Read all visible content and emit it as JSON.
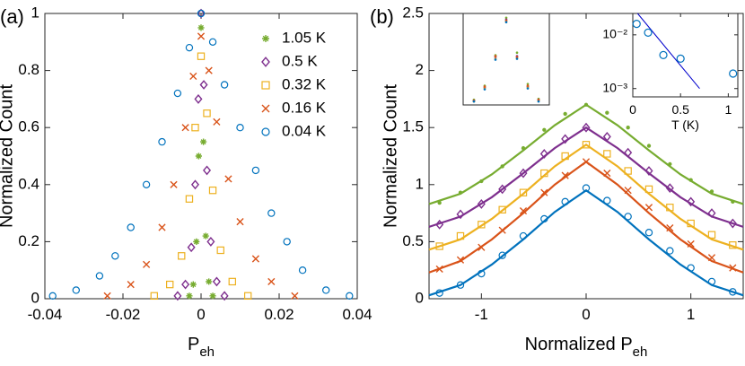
{
  "chart_data": [
    {
      "type": "scatter",
      "panel_label": "(a)",
      "xlabel": [
        "P",
        "eh"
      ],
      "ylabel": "Normalized Count",
      "xlim": [
        -0.04,
        0.04
      ],
      "ylim": [
        0,
        1
      ],
      "xticks": [
        -0.04,
        -0.02,
        0,
        0.02,
        0.04
      ],
      "yticks": [
        0,
        0.2,
        0.4,
        0.6,
        0.8,
        1
      ],
      "legend": "upper right",
      "series": [
        {
          "name": "1.05 K",
          "color": "#77ac30",
          "marker": "asterisk",
          "x": [
            -0.003,
            -0.002,
            -0.0012,
            -0.0006,
            0,
            0.0006,
            0.0012,
            0.002,
            0.003
          ],
          "values": [
            0.01,
            0.05,
            0.2,
            0.5,
            0.95,
            0.55,
            0.22,
            0.06,
            0.01
          ]
        },
        {
          "name": "0.5 K",
          "color": "#7e2f8e",
          "marker": "diamond",
          "x": [
            -0.006,
            -0.004,
            -0.0025,
            -0.0015,
            -0.0007,
            0,
            0.0007,
            0.0015,
            0.0025,
            0.004,
            0.006
          ],
          "values": [
            0.01,
            0.05,
            0.18,
            0.4,
            0.7,
            1,
            0.75,
            0.45,
            0.2,
            0.06,
            0.01
          ]
        },
        {
          "name": "0.32 K",
          "color": "#edb120",
          "marker": "square",
          "x": [
            -0.012,
            -0.008,
            -0.005,
            -0.003,
            -0.0015,
            0,
            0.0015,
            0.003,
            0.005,
            0.008,
            0.012
          ],
          "values": [
            0.01,
            0.05,
            0.15,
            0.35,
            0.6,
            0.85,
            0.65,
            0.38,
            0.17,
            0.06,
            0.01
          ]
        },
        {
          "name": "0.16 K",
          "color": "#d95319",
          "marker": "x",
          "x": [
            -0.024,
            -0.018,
            -0.014,
            -0.01,
            -0.007,
            -0.004,
            -0.002,
            0,
            0.002,
            0.004,
            0.007,
            0.01,
            0.014,
            0.018,
            0.024
          ],
          "values": [
            0.01,
            0.05,
            0.12,
            0.25,
            0.4,
            0.6,
            0.78,
            0.92,
            0.8,
            0.62,
            0.42,
            0.27,
            0.14,
            0.06,
            0.01
          ]
        },
        {
          "name": "0.04 K",
          "color": "#0072bd",
          "marker": "circle",
          "x": [
            -0.038,
            -0.032,
            -0.026,
            -0.022,
            -0.018,
            -0.014,
            -0.01,
            -0.006,
            -0.003,
            0,
            0.003,
            0.006,
            0.01,
            0.014,
            0.018,
            0.022,
            0.026,
            0.032,
            0.038
          ],
          "values": [
            0.01,
            0.03,
            0.08,
            0.15,
            0.25,
            0.4,
            0.55,
            0.72,
            0.88,
            1,
            0.9,
            0.75,
            0.6,
            0.45,
            0.3,
            0.2,
            0.1,
            0.03,
            0.01
          ]
        }
      ]
    },
    {
      "type": "scatter",
      "panel_label": "(b)",
      "xlabel": [
        "Normalized P",
        "eh"
      ],
      "ylabel": "Normalized Count",
      "xlim": [
        -1.5,
        1.5
      ],
      "ylim": [
        0,
        2.5
      ],
      "xticks": [
        -1,
        0,
        1
      ],
      "yticks": [
        0,
        0.5,
        1,
        1.5,
        2,
        2.5
      ],
      "x": [
        -1.4,
        -1.2,
        -1,
        -0.8,
        -0.6,
        -0.4,
        -0.2,
        0,
        0.2,
        0.4,
        0.6,
        0.8,
        1,
        1.2,
        1.4
      ],
      "fit_x": [
        -1.5,
        -1.2,
        -0.9,
        -0.6,
        -0.3,
        0,
        0.3,
        0.6,
        0.9,
        1.2,
        1.5
      ],
      "series": [
        {
          "color": "#77ac30",
          "marker": "dot",
          "values": [
            0.84,
            0.93,
            1.03,
            1.16,
            1.32,
            1.48,
            1.62,
            1.7,
            1.63,
            1.5,
            1.34,
            1.18,
            1.04,
            0.94,
            0.85
          ],
          "fit": [
            0.83,
            0.92,
            1.09,
            1.3,
            1.52,
            1.7,
            1.52,
            1.3,
            1.09,
            0.92,
            0.83
          ]
        },
        {
          "color": "#7e2f8e",
          "marker": "diamond",
          "values": [
            0.65,
            0.74,
            0.83,
            0.96,
            1.1,
            1.27,
            1.4,
            1.5,
            1.42,
            1.28,
            1.12,
            0.97,
            0.85,
            0.75,
            0.66
          ],
          "fit": [
            0.63,
            0.72,
            0.89,
            1.1,
            1.32,
            1.5,
            1.32,
            1.1,
            0.89,
            0.72,
            0.63
          ]
        },
        {
          "color": "#edb120",
          "marker": "square",
          "values": [
            0.46,
            0.55,
            0.65,
            0.78,
            0.93,
            1.1,
            1.25,
            1.35,
            1.27,
            1.12,
            0.96,
            0.8,
            0.66,
            0.56,
            0.47
          ],
          "fit": [
            0.43,
            0.52,
            0.7,
            0.92,
            1.16,
            1.35,
            1.16,
            0.92,
            0.7,
            0.52,
            0.43
          ]
        },
        {
          "color": "#d95319",
          "marker": "x",
          "values": [
            0.26,
            0.34,
            0.45,
            0.6,
            0.77,
            0.93,
            1.08,
            1.2,
            1.1,
            0.95,
            0.8,
            0.62,
            0.48,
            0.36,
            0.27
          ],
          "fit": [
            0.23,
            0.33,
            0.52,
            0.75,
            1,
            1.2,
            1,
            0.75,
            0.52,
            0.33,
            0.23
          ]
        },
        {
          "color": "#0072bd",
          "marker": "circle",
          "values": [
            0.05,
            0.12,
            0.22,
            0.38,
            0.55,
            0.7,
            0.85,
            0.97,
            0.86,
            0.72,
            0.58,
            0.42,
            0.27,
            0.15,
            0.06
          ],
          "fit": [
            0.03,
            0.12,
            0.3,
            0.52,
            0.76,
            0.95,
            0.76,
            0.52,
            0.3,
            0.12,
            0.03
          ]
        }
      ]
    },
    {
      "type": "scatter",
      "xlim": [
        -2,
        2
      ],
      "ylim": [
        0,
        1.05
      ],
      "x": [
        -1.5,
        -1,
        -0.5,
        0,
        0.5,
        1,
        1.5
      ],
      "series": [
        {
          "color": "#77ac30",
          "marker": "dot",
          "values": [
            0.06,
            0.22,
            0.57,
            1,
            0.6,
            0.24,
            0.07
          ]
        },
        {
          "color": "#7e2f8e",
          "marker": "dot",
          "values": [
            0.05,
            0.2,
            0.55,
            0.98,
            0.56,
            0.21,
            0.06
          ]
        },
        {
          "color": "#edb120",
          "marker": "dot",
          "values": [
            0.04,
            0.19,
            0.53,
            0.96,
            0.54,
            0.2,
            0.05
          ]
        },
        {
          "color": "#d95319",
          "marker": "dot",
          "values": [
            0.05,
            0.21,
            0.56,
            0.97,
            0.55,
            0.22,
            0.06
          ]
        },
        {
          "color": "#0072bd",
          "marker": "dot",
          "values": [
            0.04,
            0.18,
            0.52,
            0.95,
            0.53,
            0.19,
            0.04
          ]
        }
      ]
    },
    {
      "type": "scatter",
      "xlabel": [
        "T (K)"
      ],
      "xlim": [
        0,
        1.1
      ],
      "ylim": [
        0.0007,
        0.025
      ],
      "yscale": "log",
      "xticks": [
        0,
        0.5,
        1
      ],
      "yticks": [
        {
          "value": 0.01,
          "label": "10⁻²"
        },
        {
          "value": 0.001,
          "label": "10⁻³"
        }
      ],
      "fit_x": [
        0.05,
        0.7
      ],
      "series": [
        {
          "color": "#0072bd",
          "marker": "circle",
          "x": [
            0.04,
            0.16,
            0.32,
            0.5,
            1.05
          ],
          "values": [
            0.016,
            0.011,
            0.0042,
            0.0036,
            0.0019
          ],
          "fit": [
            0.025,
            0.001
          ],
          "fit_color": "#0000cc"
        }
      ]
    }
  ]
}
